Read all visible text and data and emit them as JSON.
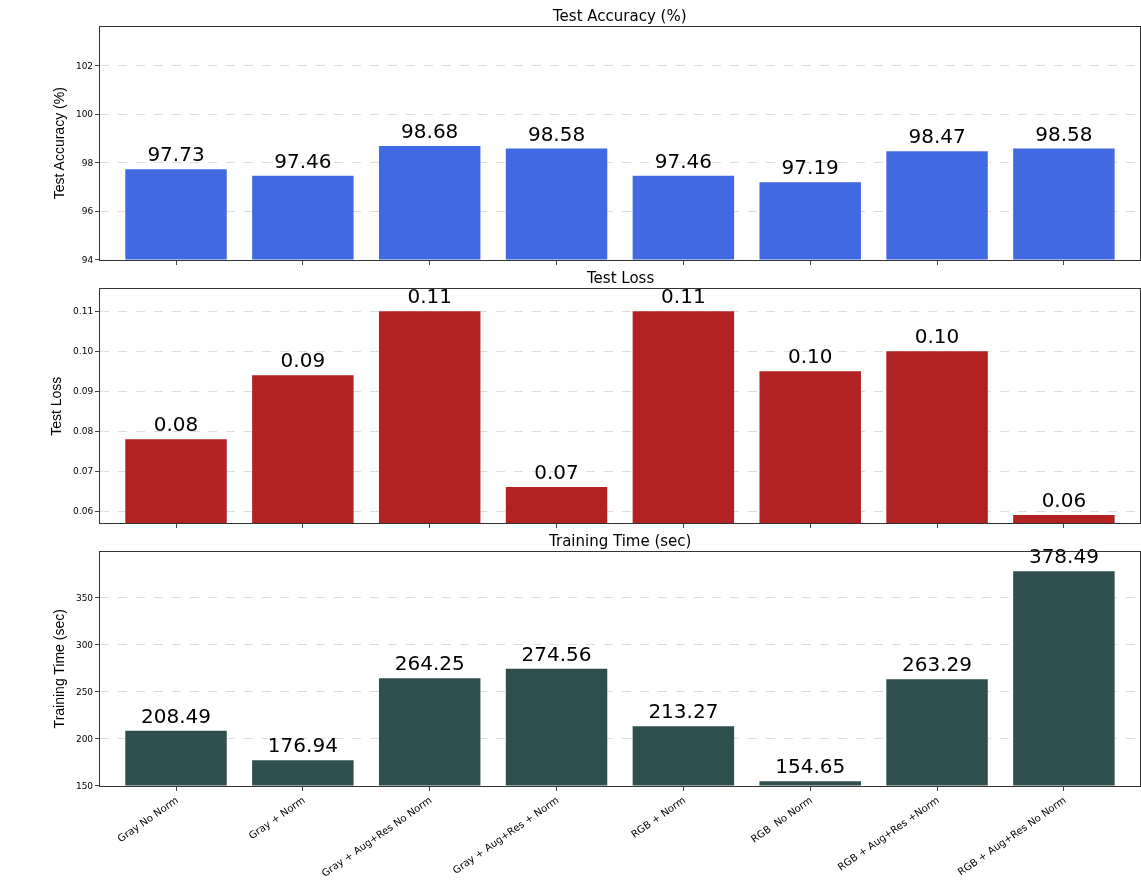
{
  "chart_data": [
    {
      "type": "bar",
      "title": "Test Accuracy (%)",
      "ylabel": "Test Accuracy (%)",
      "categories": [
        "Gray No Norm",
        "Gray + Norm",
        "Gray + Aug+Res No Norm",
        "Gray + Aug+Res + Norm",
        "RGB + Norm",
        "RGB  No Norm",
        "RGB + Aug+Res +Norm",
        "RGB + Aug+Res No Norm"
      ],
      "values": [
        97.73,
        97.46,
        98.68,
        98.58,
        97.46,
        97.19,
        98.47,
        98.58
      ],
      "color": "#4169e1",
      "ylim": [
        94,
        103.6
      ],
      "yticks": [
        94,
        96,
        98,
        100,
        102
      ],
      "grid": "y",
      "data_labels": true,
      "tick_labels": "y"
    },
    {
      "type": "bar",
      "title": "Test Loss",
      "ylabel": "Test Loss",
      "categories": [
        "Gray No Norm",
        "Gray + Norm",
        "Gray + Aug+Res No Norm",
        "Gray + Aug+Res + Norm",
        "RGB + Norm",
        "RGB  No Norm",
        "RGB + Aug+Res +Norm",
        "RGB + Aug+Res No Norm"
      ],
      "values": [
        0.078,
        0.094,
        0.11,
        0.066,
        0.11,
        0.095,
        0.1,
        0.059
      ],
      "value_labels": [
        "0.08",
        "0.09",
        "0.11",
        "0.07",
        "0.11",
        "0.10",
        "0.10",
        "0.06"
      ],
      "color": "#b22222",
      "ylim": [
        0.057,
        0.1155
      ],
      "yticks": [
        {
          "value": 0.06,
          "label": "0.06"
        },
        {
          "value": 0.07,
          "label": "0.07"
        },
        {
          "value": 0.08,
          "label": "0.08"
        },
        {
          "value": 0.09,
          "label": "0.09"
        },
        {
          "value": 0.1,
          "label": "0.10"
        },
        {
          "value": 0.11,
          "label": "0.11"
        }
      ],
      "grid": "y",
      "tick_labels": "y"
    },
    {
      "type": "bar",
      "title": "Training Time (sec)",
      "ylabel": "Training Time (sec)",
      "categories": [
        "Gray No Norm",
        "Gray + Norm",
        "Gray + Aug+Res No Norm",
        "Gray + Aug+Res + Norm",
        "RGB + Norm",
        "RGB  No Norm",
        "RGB + Aug+Res +Norm",
        "RGB + Aug+Res No Norm"
      ],
      "values": [
        208.49,
        176.94,
        264.25,
        274.56,
        213.27,
        154.65,
        263.29,
        378.49
      ],
      "color": "#2f4f4f",
      "ylim": [
        150,
        399
      ],
      "yticks": [
        150,
        200,
        250,
        300,
        350
      ],
      "grid": "y",
      "data_labels": true
    }
  ]
}
